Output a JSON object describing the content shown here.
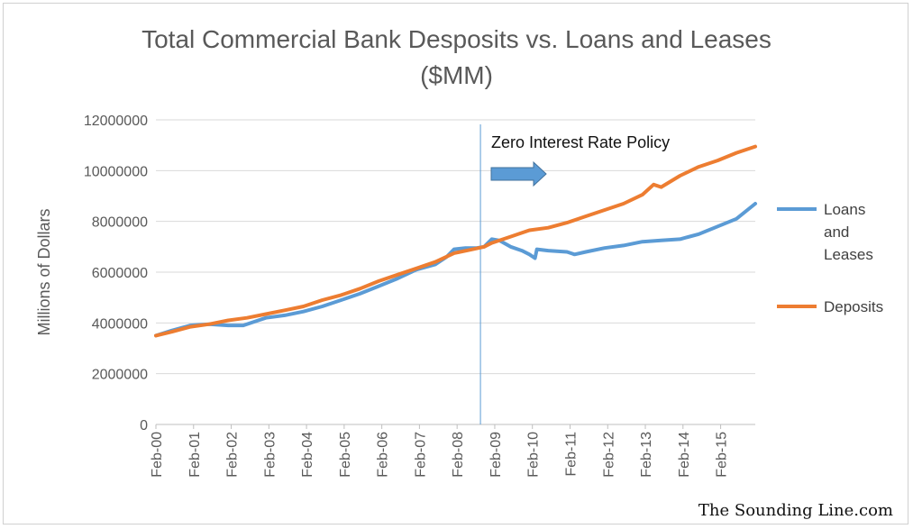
{
  "chart_data": {
    "type": "line",
    "title": "Total Commercial Bank Desposits vs. Loans and Leases",
    "subtitle": "($MM)",
    "ylabel": "Millions  of Dollars",
    "xlabel": "",
    "ylim": [
      0,
      12000000
    ],
    "yticks": [
      0,
      2000000,
      4000000,
      6000000,
      8000000,
      10000000,
      12000000
    ],
    "ytick_labels": [
      "0",
      "2000000",
      "4000000",
      "6000000",
      "8000000",
      "10000000",
      "12000000"
    ],
    "xlim": [
      2000.08,
      2016.0
    ],
    "x_tick_labels": [
      "Feb-00",
      "Feb-01",
      "Feb-02",
      "Feb-03",
      "Feb-04",
      "Feb-05",
      "Feb-06",
      "Feb-07",
      "Feb-08",
      "Feb-09",
      "Feb-10",
      "Feb-11",
      "Feb-12",
      "Feb-13",
      "Feb-14",
      "Feb-15"
    ],
    "grid": "horizontal",
    "legend_position": "right",
    "annotation": {
      "text": "Zero Interest Rate Policy",
      "vline_x": 2008.7
    },
    "series": [
      {
        "name": "Loans and Leases",
        "color": "#5b9bd5",
        "x": [
          2000.08,
          2000.5,
          2001.0,
          2001.5,
          2002.0,
          2002.4,
          2002.8,
          2003.0,
          2003.5,
          2004.0,
          2004.5,
          2005.0,
          2005.5,
          2006.0,
          2006.5,
          2007.0,
          2007.5,
          2007.8,
          2008.0,
          2008.3,
          2008.6,
          2008.8,
          2009.0,
          2009.2,
          2009.5,
          2009.8,
          2010.0,
          2010.15,
          2010.2,
          2010.5,
          2011.0,
          2011.2,
          2011.5,
          2012.0,
          2012.5,
          2013.0,
          2013.5,
          2014.0,
          2014.5,
          2015.0,
          2015.5,
          2016.0
        ],
        "y": [
          3500000,
          3700000,
          3900000,
          3950000,
          3900000,
          3900000,
          4100000,
          4200000,
          4300000,
          4450000,
          4650000,
          4900000,
          5150000,
          5450000,
          5750000,
          6100000,
          6300000,
          6600000,
          6900000,
          6950000,
          6950000,
          7000000,
          7300000,
          7250000,
          7000000,
          6850000,
          6700000,
          6550000,
          6900000,
          6850000,
          6800000,
          6700000,
          6800000,
          6950000,
          7050000,
          7200000,
          7250000,
          7300000,
          7500000,
          7800000,
          8100000,
          8700000
        ]
      },
      {
        "name": "Deposits",
        "color": "#ed7d31",
        "x": [
          2000.08,
          2000.5,
          2001.0,
          2001.5,
          2002.0,
          2002.5,
          2003.0,
          2003.5,
          2004.0,
          2004.5,
          2005.0,
          2005.5,
          2006.0,
          2006.5,
          2007.0,
          2007.5,
          2008.0,
          2008.5,
          2008.8,
          2009.0,
          2009.5,
          2010.0,
          2010.5,
          2011.0,
          2011.5,
          2012.0,
          2012.5,
          2013.0,
          2013.3,
          2013.5,
          2014.0,
          2014.5,
          2015.0,
          2015.5,
          2016.0
        ],
        "y": [
          3500000,
          3650000,
          3850000,
          3950000,
          4100000,
          4200000,
          4350000,
          4500000,
          4650000,
          4900000,
          5100000,
          5350000,
          5650000,
          5900000,
          6150000,
          6400000,
          6750000,
          6900000,
          7000000,
          7150000,
          7400000,
          7650000,
          7750000,
          7950000,
          8200000,
          8450000,
          8700000,
          9050000,
          9450000,
          9350000,
          9800000,
          10150000,
          10400000,
          10700000,
          10950000
        ]
      }
    ]
  },
  "credit": "The Sounding Line.com"
}
